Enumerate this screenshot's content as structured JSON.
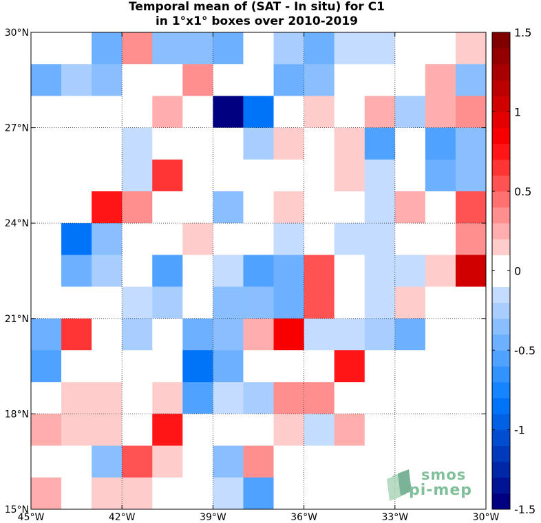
{
  "chart_data": {
    "type": "heatmap",
    "title": [
      "Temporal mean of (SAT - In situ) for C1",
      "in 1°x1° boxes over 2010-2019"
    ],
    "x_range": [
      -45,
      -30
    ],
    "y_range": [
      15,
      30
    ],
    "x_ticks": [
      {
        "value": -45,
        "label": "45°W"
      },
      {
        "value": -42,
        "label": "42°W"
      },
      {
        "value": -39,
        "label": "39°W"
      },
      {
        "value": -36,
        "label": "36°W"
      },
      {
        "value": -33,
        "label": "33°W"
      },
      {
        "value": -30,
        "label": "30°W"
      }
    ],
    "y_ticks": [
      {
        "value": 15,
        "label": "15°N"
      },
      {
        "value": 18,
        "label": "18°N"
      },
      {
        "value": 21,
        "label": "21°N"
      },
      {
        "value": 24,
        "label": "24°N"
      },
      {
        "value": 27,
        "label": "27°N"
      },
      {
        "value": 30,
        "label": "30°N"
      }
    ],
    "grid": true,
    "colorbar": {
      "range": [
        -1.5,
        1.5
      ],
      "step": 0.1,
      "ticks": [
        {
          "value": 1.5,
          "label": "1.5"
        },
        {
          "value": 1,
          "label": "1"
        },
        {
          "value": 0.5,
          "label": "0.5"
        },
        {
          "value": 0,
          "label": "0"
        },
        {
          "value": -0.5,
          "label": "-0.5"
        },
        {
          "value": -1,
          "label": "-1"
        },
        {
          "value": -1.5,
          "label": "-1.5"
        }
      ]
    },
    "rows_note": "values from north (29.5N) to south (15.5N), columns from 44.5W to 30.5W",
    "values": [
      [
        0,
        0,
        -0.45,
        0.35,
        -0.3,
        -0.3,
        -0.45,
        0,
        -0.25,
        -0.45,
        -0.15,
        -0.15,
        0,
        0,
        0.15
      ],
      [
        -0.45,
        -0.25,
        -0.35,
        0,
        0,
        0.3,
        0,
        0,
        -0.45,
        -0.35,
        0,
        0,
        0,
        0.25,
        -0.35
      ],
      [
        0,
        0,
        0,
        0,
        0.25,
        0,
        -1.5,
        -0.85,
        0,
        0.15,
        0,
        0.25,
        -0.25,
        0.25,
        0.4
      ],
      [
        0,
        0,
        0,
        -0.15,
        0,
        0,
        0,
        -0.25,
        0.15,
        0,
        0.15,
        -0.55,
        0,
        -0.55,
        -0.4
      ],
      [
        0,
        0,
        0,
        -0.15,
        0.6,
        0,
        0,
        0,
        0,
        0,
        0.15,
        -0.15,
        0,
        -0.45,
        -0.4
      ],
      [
        0,
        0,
        0.75,
        0.3,
        0,
        0,
        -0.35,
        0,
        0.15,
        0,
        0,
        -0.15,
        0.25,
        0,
        0.5
      ],
      [
        0,
        -0.85,
        -0.35,
        0,
        0,
        0.15,
        0,
        0,
        -0.15,
        0,
        -0.15,
        -0.15,
        0,
        0,
        0.3
      ],
      [
        0,
        -0.45,
        -0.25,
        0,
        -0.55,
        0,
        -0.15,
        -0.55,
        -0.5,
        0.5,
        0,
        -0.15,
        -0.15,
        0.15,
        1.05
      ],
      [
        0,
        0,
        0,
        -0.15,
        -0.25,
        0,
        -0.3,
        -0.35,
        -0.5,
        0.5,
        0,
        -0.15,
        0.15,
        0,
        0
      ],
      [
        -0.45,
        0.6,
        0,
        -0.25,
        0,
        -0.45,
        -0.35,
        0.25,
        0.85,
        -0.15,
        -0.15,
        -0.25,
        -0.45,
        0,
        0
      ],
      [
        -0.55,
        0,
        0,
        0,
        0,
        -0.85,
        -0.45,
        0,
        0,
        0,
        0.7,
        0,
        0,
        0,
        0
      ],
      [
        0,
        0.15,
        0.15,
        0,
        0.15,
        -0.55,
        -0.15,
        -0.25,
        0.35,
        0.35,
        0,
        0,
        0,
        0,
        0
      ],
      [
        0.25,
        0.15,
        0.15,
        0,
        0.75,
        0,
        0,
        0,
        0.15,
        -0.15,
        0.25,
        0,
        0,
        0,
        0
      ],
      [
        0,
        0,
        -0.35,
        0.5,
        0.15,
        0,
        -0.35,
        0.4,
        0,
        0,
        0,
        0,
        0,
        0,
        0
      ],
      [
        0.25,
        0,
        0.15,
        0.15,
        0,
        0,
        -0.15,
        -0.55,
        0,
        0,
        0,
        0,
        0,
        0,
        0
      ]
    ]
  },
  "logo": {
    "line1": "smos",
    "line2": "pi-mep"
  }
}
